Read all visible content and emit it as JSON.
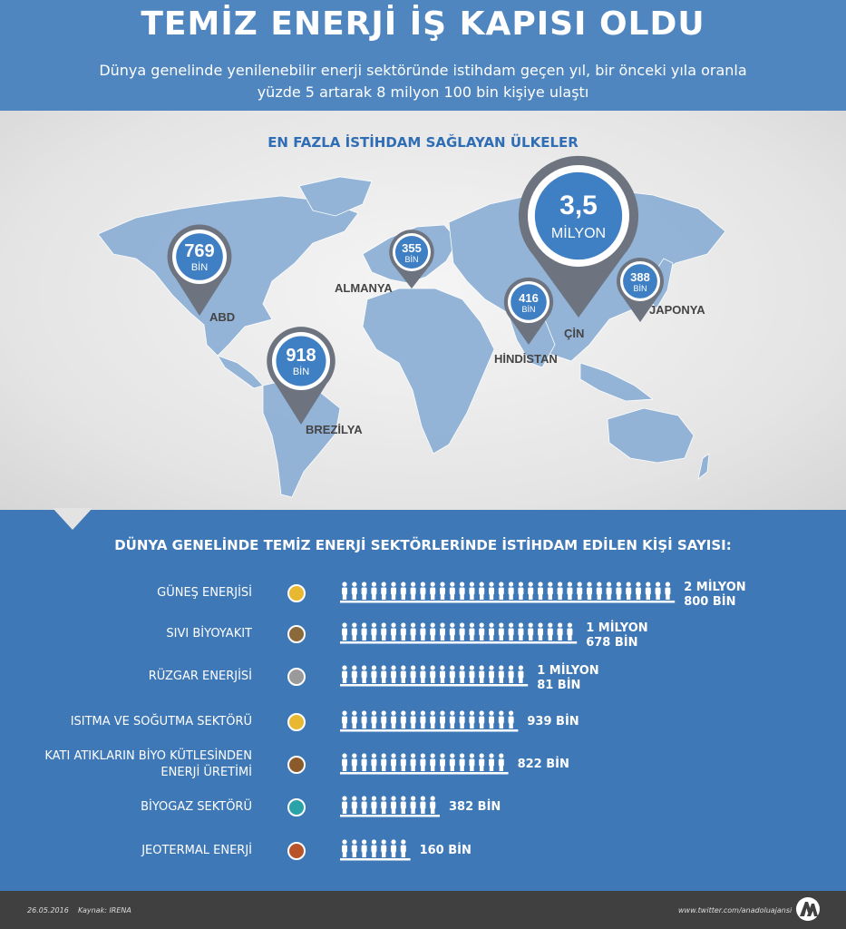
{
  "header": {
    "title": "TEMİZ ENERJİ İŞ KAPISI OLDU",
    "subtitle_line1": "Dünya genelinde yenilenebilir enerji sektöründe istihdam geçen yıl, bir önceki yıla oranla",
    "subtitle_line2": "yüzde 5 artarak 8 milyon 100 bin kişiye ulaştı"
  },
  "map": {
    "title": "EN FAZLA İSTİHDAM SAĞLAYAN ÜLKELER",
    "pins": [
      {
        "country": "ABD",
        "value": "769",
        "unit": "BİN"
      },
      {
        "country": "BREZİLYA",
        "value": "918",
        "unit": "BİN"
      },
      {
        "country": "ALMANYA",
        "value": "355",
        "unit": "BİN"
      },
      {
        "country": "HİNDİSTAN",
        "value": "416",
        "unit": "BİN"
      },
      {
        "country": "ÇİN",
        "value": "3,5",
        "unit": "MİLYON"
      },
      {
        "country": "JAPONYA",
        "value": "388",
        "unit": "BİN"
      }
    ]
  },
  "sectors": {
    "title": "DÜNYA GENELİNDE TEMİZ ENERJİ SEKTÖRLERİNDE İSTİHDAM EDİLEN KİŞİ SAYISI:",
    "rows": [
      {
        "label_line1": "GÜNEŞ ENERJİSİ",
        "label_line2": "",
        "value_line1": "2 MİLYON",
        "value_line2": "800 BİN",
        "people": 34,
        "icon": "sun-icon",
        "icon_color": "#e8b830"
      },
      {
        "label_line1": "SIVI BİYOYAKIT",
        "label_line2": "",
        "value_line1": "1 MİLYON",
        "value_line2": "678 BİN",
        "people": 24,
        "icon": "biofuel-icon",
        "icon_color": "#8a6a3a"
      },
      {
        "label_line1": "RÜZGAR ENERJİSİ",
        "label_line2": "",
        "value_line1": "1 MİLYON",
        "value_line2": "81 BİN",
        "people": 19,
        "icon": "wind-icon",
        "icon_color": "#9a9a9a"
      },
      {
        "label_line1": "ISITMA VE SOĞUTMA SEKTÖRÜ",
        "label_line2": "",
        "value_line1": "939 BİN",
        "value_line2": "",
        "people": 18,
        "icon": "heating-icon",
        "icon_color": "#e8b830"
      },
      {
        "label_line1": "KATI ATIKLARIN BİYO KÜTLESİNDEN",
        "label_line2": "ENERJİ ÜRETİMİ",
        "value_line1": "822 BİN",
        "value_line2": "",
        "people": 17,
        "icon": "biomass-icon",
        "icon_color": "#8a5a2a"
      },
      {
        "label_line1": "BİYOGAZ SEKTÖRÜ",
        "label_line2": "",
        "value_line1": "382 BİN",
        "value_line2": "",
        "people": 10,
        "icon": "biogas-icon",
        "icon_color": "#2aa3a8"
      },
      {
        "label_line1": "JEOTERMAL ENERJİ",
        "label_line2": "",
        "value_line1": "160 BİN",
        "value_line2": "",
        "people": 7,
        "icon": "geothermal-icon",
        "icon_color": "#b8532a"
      }
    ]
  },
  "footer": {
    "date": "26.05.2016",
    "source": "Kaynak: IRENA",
    "url": "www.twitter.com/anadoluajansi",
    "logo": "AA"
  },
  "colors": {
    "header_blue": "#4f86c0",
    "map_land": "#8fb1d6",
    "pin_gray": "#6d7480",
    "pin_blue": "#3f7fc4",
    "bottom_blue": "#3f78b6",
    "footer_dark": "#404040"
  }
}
